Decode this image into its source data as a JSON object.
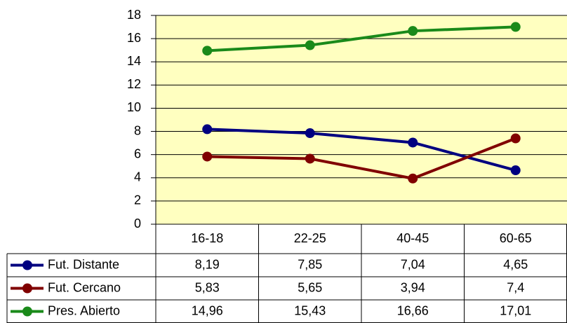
{
  "chart_data": {
    "type": "line",
    "categories": [
      "16-18",
      "22-25",
      "40-45",
      "60-65"
    ],
    "series": [
      {
        "name": "Fut. Distante",
        "color": "#000080",
        "values": [
          8.19,
          7.85,
          7.04,
          4.65
        ],
        "value_labels": [
          "8,19",
          "7,85",
          "7,04",
          "4,65"
        ]
      },
      {
        "name": "Fut. Cercano",
        "color": "#800000",
        "values": [
          5.83,
          5.65,
          3.94,
          7.4
        ],
        "value_labels": [
          "5,83",
          "5,65",
          "3,94",
          "7,4"
        ]
      },
      {
        "name": "Pres. Abierto",
        "color": "#1a8a1a",
        "values": [
          14.96,
          15.43,
          16.66,
          17.01
        ],
        "value_labels": [
          "14,96",
          "15,43",
          "16,66",
          "17,01"
        ]
      }
    ],
    "ylim": [
      0,
      18
    ],
    "yticks": [
      0,
      2,
      4,
      6,
      8,
      10,
      12,
      14,
      16,
      18
    ],
    "grid": true,
    "plot_background": "#ffffc0"
  }
}
